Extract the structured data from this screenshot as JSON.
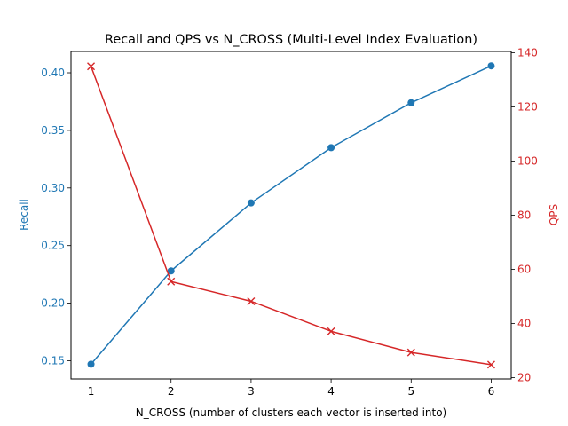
{
  "chart_data": {
    "type": "line",
    "title": "Recall and QPS vs N_CROSS (Multi-Level Index Evaluation)",
    "xlabel": "N_CROSS (number of clusters each vector is inserted into)",
    "x": [
      1,
      2,
      3,
      4,
      5,
      6
    ],
    "x_ticks": [
      "1",
      "2",
      "3",
      "4",
      "5",
      "6"
    ],
    "xlim": [
      0.75,
      6.25
    ],
    "grid": false,
    "series": [
      {
        "axis": "left",
        "marker": "circle",
        "color": "#1f77b4",
        "values": [
          0.147,
          0.228,
          0.287,
          0.335,
          0.374,
          0.406
        ]
      },
      {
        "axis": "right",
        "marker": "x",
        "color": "#d62728",
        "values": [
          135,
          55.5,
          48.2,
          37.1,
          29.3,
          24.8
        ]
      }
    ],
    "y_left": {
      "label": "Recall",
      "color": "#1f77b4",
      "ylim": [
        0.1342,
        0.4185
      ],
      "ticks": [
        0.15,
        0.2,
        0.25,
        0.3,
        0.35,
        0.4
      ],
      "tick_labels": [
        "0.15",
        "0.20",
        "0.25",
        "0.30",
        "0.35",
        "0.40"
      ]
    },
    "y_right": {
      "label": "QPS",
      "color": "#d62728",
      "ylim": [
        19.5,
        140.5
      ],
      "ticks": [
        20,
        40,
        60,
        80,
        100,
        120,
        140
      ],
      "tick_labels": [
        "20",
        "40",
        "60",
        "80",
        "100",
        "120",
        "140"
      ]
    }
  }
}
